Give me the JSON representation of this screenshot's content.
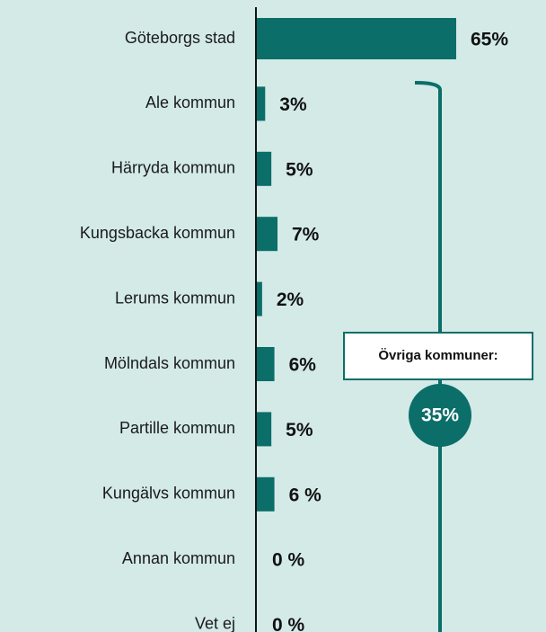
{
  "chart_data": {
    "type": "bar",
    "orientation": "horizontal",
    "categories": [
      "Göteborgs stad",
      "Ale kommun",
      "Härryda kommun",
      "Kungsbacka kommun",
      "Lerums kommun",
      "Mölndals kommun",
      "Partille kommun",
      "Kungälvs kommun",
      "Annan kommun",
      "Vet ej"
    ],
    "values": [
      65,
      3,
      5,
      7,
      2,
      6,
      5,
      6,
      0,
      0
    ],
    "value_labels": [
      "65%",
      "3%",
      "5%",
      "7%",
      "2%",
      "6%",
      "5%",
      "6 %",
      "0 %",
      "0 %"
    ],
    "color": "#0b6e69",
    "annotations": [
      {
        "text": "Övriga kommuner:"
      },
      {
        "text": "35%"
      }
    ]
  }
}
